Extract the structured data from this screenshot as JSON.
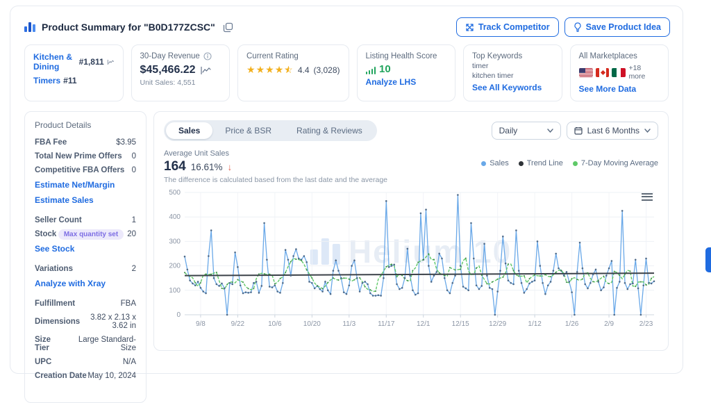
{
  "header": {
    "title": "Product Summary for \"B0D177ZCSC\"",
    "track_button": "Track Competitor",
    "save_button": "Save Product Idea"
  },
  "stat_cards": {
    "category": {
      "primary_link": "Kitchen & Dining",
      "primary_rank": "#1,811",
      "secondary_link": "Timers",
      "secondary_rank": "#11"
    },
    "revenue": {
      "label": "30-Day Revenue",
      "value": "$45,466.22",
      "unit_sales_label": "Unit Sales:",
      "unit_sales_value": "4,551"
    },
    "rating": {
      "label": "Current Rating",
      "stars": 4.5,
      "value": "4.4",
      "reviews": "(3,028)"
    },
    "lhs": {
      "label": "Listing Health Score",
      "score": "10",
      "link": "Analyze LHS"
    },
    "keywords": {
      "label": "Top Keywords",
      "items": [
        "timer",
        "kitchen timer"
      ],
      "link": "See All Keywords"
    },
    "marketplaces": {
      "label": "All Marketplaces",
      "flags": [
        "us",
        "ca",
        "mx"
      ],
      "more": "+18 more",
      "link": "See More Data"
    }
  },
  "product_details": {
    "title": "Product Details",
    "groups": [
      {
        "rows": [
          {
            "label": "FBA Fee",
            "value": "$3.95"
          },
          {
            "label": "Total New Prime Offers",
            "value": "0"
          },
          {
            "label": "Competitive FBA Offers",
            "value": "0"
          }
        ],
        "links": [
          "Estimate Net/Margin",
          "Estimate Sales"
        ]
      },
      {
        "rows": [
          {
            "label": "Seller Count",
            "value": "1"
          },
          {
            "label": "Stock",
            "value": "20",
            "badge": "Max quantity set"
          }
        ],
        "links": [
          "See Stock"
        ]
      },
      {
        "rows": [
          {
            "label": "Variations",
            "value": "2"
          }
        ],
        "links": [
          "Analyze with Xray"
        ]
      },
      {
        "rows": [
          {
            "label": "Fulfillment",
            "value": "FBA"
          },
          {
            "label": "Dimensions",
            "value": "3.82 x 2.13 x 3.62 in"
          },
          {
            "label": "Size Tier",
            "value": "Large Standard-Size"
          },
          {
            "label": "UPC",
            "value": "N/A"
          },
          {
            "label": "Creation Date",
            "value": "May 10, 2024"
          }
        ],
        "links": []
      }
    ]
  },
  "chart_panel": {
    "tabs": [
      "Sales",
      "Price & BSR",
      "Rating & Reviews"
    ],
    "active_tab": "Sales",
    "granularity": "Daily",
    "date_range": "Last 6 Months",
    "metric_label": "Average Unit Sales",
    "metric_value": "164",
    "metric_delta": "16.61%",
    "delta_arrow": "↓",
    "metric_note": "The difference is calculated based from the last date and the average",
    "watermark": "Helium 10"
  },
  "chart_data": {
    "type": "line",
    "title": "Average Unit Sales (daily)",
    "ylim": [
      0,
      500
    ],
    "y_ticks": [
      0,
      100,
      200,
      300,
      400,
      500
    ],
    "x_tick_labels": [
      "9/8",
      "9/22",
      "10/6",
      "10/20",
      "11/3",
      "11/17",
      "12/1",
      "12/15",
      "12/29",
      "1/12",
      "1/26",
      "2/9",
      "2/23"
    ],
    "x_tick_indices": [
      6,
      20,
      34,
      48,
      62,
      76,
      90,
      104,
      118,
      132,
      146,
      160,
      174
    ],
    "legend": [
      {
        "label": "Sales",
        "color": "#69a8e8"
      },
      {
        "label": "Trend Line",
        "color": "#2f3338"
      },
      {
        "label": "7-Day Moving Average",
        "color": "#5fc968"
      }
    ],
    "series": [
      {
        "name": "Sales",
        "color": "#69a8e8",
        "marker_color": "#4f6b8a",
        "values": [
          238,
          185,
          140,
          128,
          120,
          135,
          110,
          95,
          88,
          240,
          345,
          150,
          125,
          118,
          128,
          108,
          0,
          130,
          125,
          255,
          195,
          120,
          88,
          92,
          90,
          92,
          130,
          135,
          90,
          118,
          375,
          225,
          115,
          112,
          120,
          95,
          90,
          130,
          265,
          225,
          160,
          240,
          268,
          230,
          225,
          240,
          215,
          135,
          130,
          108,
          118,
          105,
          95,
          135,
          100,
          85,
          180,
          222,
          180,
          150,
          92,
          85,
          120,
          200,
          222,
          150,
          95,
          130,
          135,
          125,
          88,
          78,
          78,
          80,
          78,
          150,
          465,
          195,
          200,
          205,
          125,
          105,
          110,
          150,
          270,
          160,
          100,
          82,
          88,
          415,
          225,
          430,
          200,
          135,
          160,
          175,
          250,
          230,
          150,
          100,
          88,
          130,
          160,
          490,
          200,
          115,
          108,
          100,
          375,
          230,
          120,
          105,
          118,
          290,
          160,
          110,
          105,
          0,
          95,
          180,
          320,
          210,
          140,
          130,
          125,
          345,
          180,
          130,
          90,
          105,
          128,
          135,
          140,
          300,
          200,
          130,
          85,
          120,
          135,
          180,
          250,
          190,
          180,
          160,
          175,
          135,
          92,
          0,
          175,
          295,
          190,
          125,
          108,
          130,
          165,
          185,
          135,
          100,
          112,
          160,
          190,
          220,
          0,
          110,
          135,
          425,
          130,
          105,
          125,
          128,
          225,
          108,
          0,
          120,
          230,
          130,
          128,
          137
        ]
      },
      {
        "name": "Trend Line",
        "color": "#3b4148",
        "trend_endpoints": [
          160,
          170
        ]
      },
      {
        "name": "7-Day Moving Average",
        "color": "#5fc968",
        "marker_color": "#3e8a48",
        "derived": "centered 7-day moving average of Sales"
      }
    ]
  }
}
